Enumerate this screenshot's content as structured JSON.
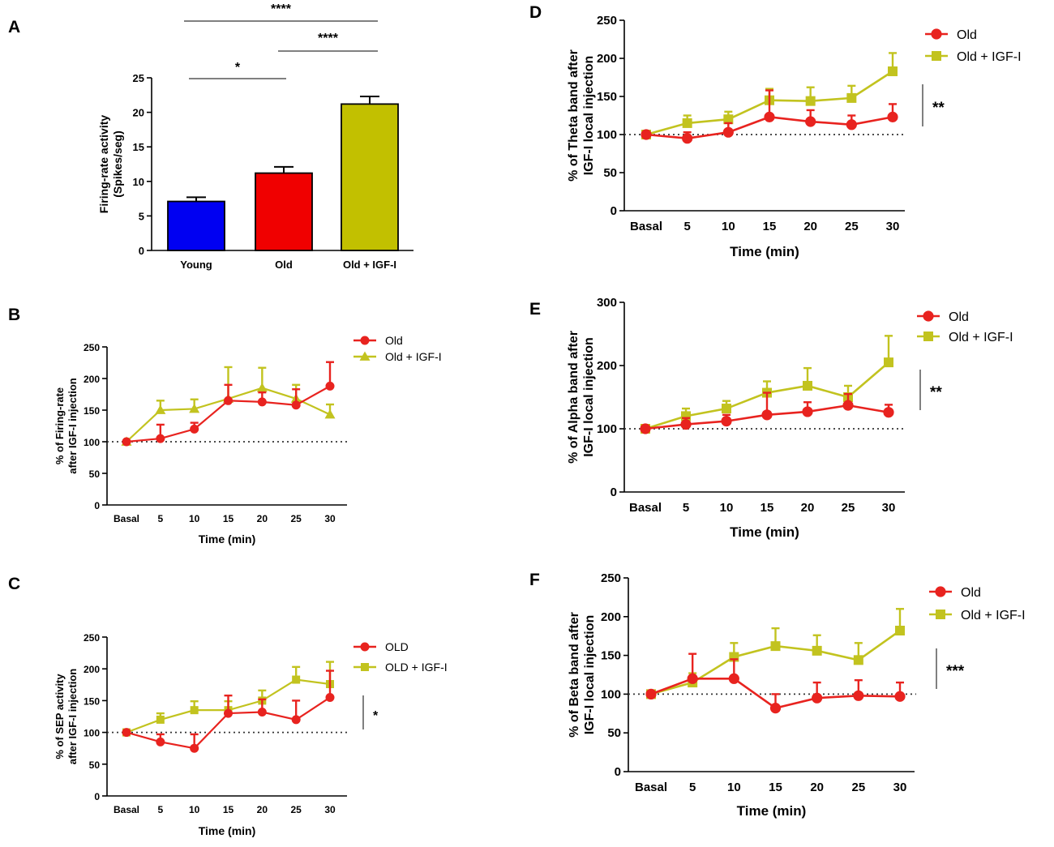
{
  "colors": {
    "old": "#e8231f",
    "igf": "#c2c31f",
    "young": "#0000f2",
    "bar_old": "#f00000",
    "bar_igf": "#c2c000"
  },
  "chart_data": [
    {
      "panel": "A",
      "type": "bar",
      "title": "",
      "categories": [
        "Young",
        "Old",
        "Old + IGF-I"
      ],
      "values": [
        7.1,
        11.2,
        21.2
      ],
      "errors": [
        0.6,
        0.9,
        1.1
      ],
      "ylabel": [
        "Firing-rate activity",
        "(Spikes/seg)"
      ],
      "xlabel": "",
      "ylim": [
        0,
        25
      ],
      "yticks": [
        "0",
        "5",
        "10",
        "15",
        "20",
        "25"
      ],
      "significance": [
        {
          "from": 0,
          "to": 1,
          "label": "*"
        },
        {
          "from": 1,
          "to": 2,
          "label": "****"
        },
        {
          "from": 0,
          "to": 2,
          "label": "****"
        }
      ]
    },
    {
      "panel": "B",
      "type": "line",
      "categories": [
        "Basal",
        "5",
        "10",
        "15",
        "20",
        "25",
        "30"
      ],
      "xlabel": "Time (min)",
      "ylabel": [
        "% of Firing-rate",
        "after IGF-I injection"
      ],
      "ylim": [
        0,
        250
      ],
      "yticks": [
        "0",
        "50",
        "100",
        "150",
        "200",
        "250"
      ],
      "baseline": 100,
      "series": [
        {
          "name": "Old",
          "marker": "circle",
          "values": [
            100,
            105,
            120,
            165,
            163,
            158,
            188
          ],
          "errors": [
            0,
            22,
            10,
            25,
            15,
            25,
            38
          ]
        },
        {
          "name": "Old + IGF-I",
          "marker": "triangle",
          "values": [
            100,
            150,
            152,
            168,
            185,
            168,
            143
          ],
          "errors": [
            0,
            15,
            15,
            50,
            32,
            22,
            16
          ]
        }
      ],
      "legend": [
        "Old",
        "Old + IGF-I"
      ],
      "significance": ""
    },
    {
      "panel": "C",
      "type": "line",
      "categories": [
        "Basal",
        "5",
        "10",
        "15",
        "20",
        "25",
        "30"
      ],
      "xlabel": "Time (min)",
      "ylabel": [
        "% of SEP activity",
        "after IGF-I injection"
      ],
      "ylim": [
        0,
        250
      ],
      "yticks": [
        "0",
        "50",
        "100",
        "150",
        "200",
        "250"
      ],
      "baseline": 100,
      "series": [
        {
          "name": "OLD",
          "marker": "circle",
          "values": [
            100,
            85,
            75,
            130,
            132,
            120,
            155
          ],
          "errors": [
            0,
            12,
            22,
            28,
            20,
            30,
            42
          ]
        },
        {
          "name": "OLD + IGF-I",
          "marker": "square",
          "values": [
            100,
            120,
            135,
            135,
            150,
            183,
            176
          ],
          "errors": [
            0,
            10,
            14,
            14,
            16,
            20,
            35
          ]
        }
      ],
      "legend": [
        "OLD",
        "OLD + IGF-I"
      ],
      "significance": "*"
    },
    {
      "panel": "D",
      "type": "line",
      "categories": [
        "Basal",
        "5",
        "10",
        "15",
        "20",
        "25",
        "30"
      ],
      "xlabel": "Time (min)",
      "ylabel": [
        "% of Theta band after",
        "IGF-I local injection"
      ],
      "ylim": [
        0,
        250
      ],
      "yticks": [
        "0",
        "50",
        "100",
        "150",
        "200",
        "250"
      ],
      "baseline": 100,
      "series": [
        {
          "name": "Old",
          "marker": "circle",
          "values": [
            100,
            95,
            103,
            123,
            117,
            113,
            123
          ],
          "errors": [
            0,
            8,
            12,
            35,
            15,
            12,
            17
          ]
        },
        {
          "name": "Old + IGF-I",
          "marker": "square",
          "values": [
            100,
            115,
            120,
            145,
            144,
            148,
            183
          ],
          "errors": [
            0,
            10,
            10,
            15,
            18,
            16,
            24
          ]
        }
      ],
      "legend": [
        "Old",
        "Old + IGF-I"
      ],
      "significance": "**"
    },
    {
      "panel": "E",
      "type": "line",
      "categories": [
        "Basal",
        "5",
        "10",
        "15",
        "20",
        "25",
        "30"
      ],
      "xlabel": "Time (min)",
      "ylabel": [
        "% of Alpha band after",
        "IGF-I local injection"
      ],
      "ylim": [
        0,
        300
      ],
      "yticks": [
        "0",
        "100",
        "200",
        "300"
      ],
      "baseline": 100,
      "series": [
        {
          "name": "Old",
          "marker": "circle",
          "values": [
            100,
            107,
            112,
            122,
            127,
            137,
            126
          ],
          "errors": [
            0,
            10,
            10,
            35,
            15,
            18,
            12
          ]
        },
        {
          "name": "Old + IGF-I",
          "marker": "square",
          "values": [
            100,
            120,
            132,
            157,
            168,
            150,
            205
          ],
          "errors": [
            0,
            12,
            12,
            18,
            28,
            18,
            42
          ]
        }
      ],
      "legend": [
        "Old",
        "Old + IGF-I"
      ],
      "significance": "**"
    },
    {
      "panel": "F",
      "type": "line",
      "categories": [
        "Basal",
        "5",
        "10",
        "15",
        "20",
        "25",
        "30"
      ],
      "xlabel": "Time (min)",
      "ylabel": [
        "% of Beta band after",
        "IGF-I local injection"
      ],
      "ylim": [
        0,
        250
      ],
      "yticks": [
        "0",
        "50",
        "100",
        "150",
        "200",
        "250"
      ],
      "baseline": 100,
      "series": [
        {
          "name": "Old",
          "marker": "circle",
          "values": [
            100,
            120,
            120,
            82,
            95,
            98,
            97
          ],
          "errors": [
            0,
            32,
            25,
            18,
            20,
            20,
            18
          ]
        },
        {
          "name": "Old + IGF-I",
          "marker": "square",
          "values": [
            100,
            115,
            148,
            162,
            156,
            144,
            182
          ],
          "errors": [
            0,
            12,
            18,
            23,
            20,
            22,
            28
          ]
        }
      ],
      "legend": [
        "Old",
        "Old + IGF-I"
      ],
      "significance": "***"
    }
  ]
}
